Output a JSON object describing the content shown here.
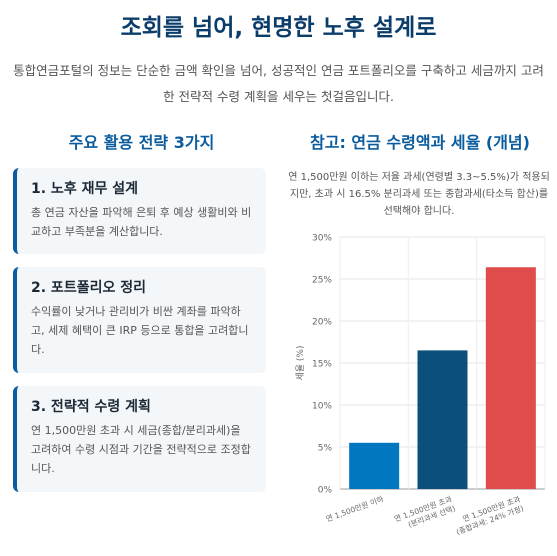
{
  "title": "조회를 넘어, 현명한 노후 설계로",
  "intro": "통합연금포털의 정보는 단순한 금액 확인을 넘어, 성공적인 연금 포트폴리오를 구축하고 세금까지 고려한 전략적 수령 계획을 세우는 첫걸음입니다.",
  "left": {
    "title": "주요 활용 전략 3가지",
    "cards": [
      {
        "title": "1. 노후 재무 설계",
        "desc": "총 연금 자산을 파악해 은퇴 후 예상 생활비와 비교하고 부족분을 계산합니다."
      },
      {
        "title": "2. 포트폴리오 정리",
        "desc": "수익률이 낮거나 관리비가 비싼 계좌를 파악하고, 세제 혜택이 큰 IRP 등으로 통합을 고려합니다."
      },
      {
        "title": "3. 전략적 수령 계획",
        "desc": "연 1,500만원 초과 시 세금(종합/분리과세)을 고려하여 수령 시점과 기간을 전략적으로 조정합니다."
      }
    ]
  },
  "right": {
    "title": "참고: 연금 수령액과 세율 (개념)",
    "desc": "연 1,500만원 이하는 저율 과세(연령별 3.3~5.5%)가 적용되지만, 초과 시 16.5% 분리과세 또는 종합과세(타소득 합산)를 선택해야 합니다."
  },
  "chart_data": {
    "type": "bar",
    "categories": [
      [
        "연 1,500만원 이하"
      ],
      [
        "연 1,500만원 초과",
        "(분리과세 선택)"
      ],
      [
        "연 1,500만원 초과",
        "(종합과세: 24% 가정)"
      ]
    ],
    "values": [
      5.5,
      16.5,
      26.4
    ],
    "colors": [
      "#0077c0",
      "#0b4f7c",
      "#e04b4b"
    ],
    "ylabel": "세율 (%)",
    "ylim": [
      0,
      30
    ],
    "yticks": [
      "0%",
      "5%",
      "10%",
      "15%",
      "20%",
      "25%",
      "30%"
    ],
    "grid": true
  }
}
